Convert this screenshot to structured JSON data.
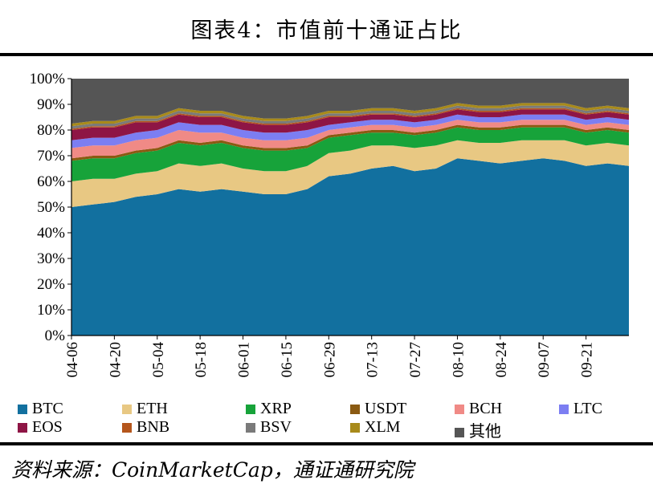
{
  "title": "图表4：市值前十通证占比",
  "source": "资料来源：CoinMarketCap，通证通研究院",
  "chart_data": {
    "type": "area",
    "stacked": true,
    "normalized_percent": true,
    "ylim": [
      0,
      100
    ],
    "y_ticks": [
      "0%",
      "10%",
      "20%",
      "30%",
      "40%",
      "50%",
      "60%",
      "70%",
      "80%",
      "90%",
      "100%"
    ],
    "x_tick_labels": [
      "04-06",
      "04-20",
      "05-04",
      "05-18",
      "06-01",
      "06-15",
      "06-29",
      "07-13",
      "07-27",
      "08-10",
      "08-24",
      "09-07",
      "09-21"
    ],
    "x": [
      "04-06",
      "04-13",
      "04-20",
      "04-27",
      "05-04",
      "05-11",
      "05-18",
      "05-25",
      "06-01",
      "06-08",
      "06-15",
      "06-22",
      "06-29",
      "07-06",
      "07-13",
      "07-20",
      "07-27",
      "08-03",
      "08-10",
      "08-17",
      "08-24",
      "08-31",
      "09-07",
      "09-14",
      "09-21",
      "09-28",
      "10-02"
    ],
    "series": [
      {
        "name": "BTC",
        "color": "#12709f",
        "values": [
          50,
          51,
          52,
          54,
          55,
          57,
          56,
          57,
          56,
          55,
          55,
          57,
          62,
          63,
          65,
          66,
          64,
          65,
          69,
          68,
          67,
          68,
          69,
          68,
          66,
          67,
          66
        ]
      },
      {
        "name": "ETH",
        "color": "#e8c883",
        "values": [
          10,
          10,
          9,
          9,
          9,
          10,
          10,
          10,
          9,
          9,
          9,
          9,
          9,
          9,
          9,
          8,
          9,
          9,
          7,
          7,
          8,
          8,
          7,
          8,
          8,
          8,
          8
        ]
      },
      {
        "name": "XRP",
        "color": "#17a33a",
        "values": [
          8,
          8,
          8,
          8,
          8,
          8,
          8,
          8,
          8,
          8,
          8,
          7,
          6,
          6,
          5,
          5,
          5,
          5,
          5,
          5,
          5,
          5,
          5,
          5,
          5,
          5,
          5
        ]
      },
      {
        "name": "USDT",
        "color": "#8a5a12",
        "values": [
          1,
          1,
          1,
          1,
          1,
          1,
          1,
          1,
          1,
          1,
          1,
          1,
          1,
          1,
          1,
          1,
          1,
          1,
          1,
          1,
          1,
          1,
          1,
          1,
          1,
          1,
          1
        ]
      },
      {
        "name": "BCH",
        "color": "#f08a86",
        "values": [
          4,
          4,
          4,
          4,
          4,
          4,
          4,
          3,
          3,
          3,
          3,
          3,
          2,
          2,
          2,
          2,
          2,
          2,
          2,
          2,
          2,
          2,
          2,
          2,
          2,
          2,
          2
        ]
      },
      {
        "name": "LTC",
        "color": "#7c7ef2",
        "values": [
          3,
          3,
          3,
          3,
          3,
          3,
          3,
          3,
          3,
          3,
          3,
          3,
          2,
          2,
          2,
          2,
          2,
          2,
          2,
          2,
          2,
          2,
          2,
          2,
          2,
          2,
          2
        ]
      },
      {
        "name": "EOS",
        "color": "#8e1545",
        "values": [
          4,
          4,
          4,
          4,
          3,
          3,
          3,
          3,
          3,
          3,
          3,
          3,
          3,
          2,
          2,
          2,
          2,
          2,
          2,
          2,
          2,
          2,
          2,
          2,
          2,
          2,
          2
        ]
      },
      {
        "name": "BNB",
        "color": "#b5561c",
        "values": [
          0.5,
          0.5,
          0.5,
          0.5,
          0.5,
          0.5,
          0.5,
          0.5,
          0.5,
          0.5,
          0.5,
          0.5,
          0.5,
          0.5,
          0.5,
          0.5,
          0.5,
          0.5,
          0.5,
          0.5,
          0.5,
          0.5,
          0.5,
          0.5,
          0.5,
          0.5,
          0.5
        ]
      },
      {
        "name": "BSV",
        "color": "#7a7a7a",
        "values": [
          1,
          1,
          1,
          1,
          1,
          1,
          1,
          1,
          1,
          1,
          1,
          1,
          1,
          1,
          1,
          1,
          1,
          1,
          1,
          1,
          1,
          1,
          1,
          1,
          1,
          1,
          1
        ]
      },
      {
        "name": "XLM",
        "color": "#a88a1a",
        "values": [
          1,
          1,
          1,
          1,
          1,
          1,
          1,
          1,
          1,
          1,
          1,
          1,
          1,
          1,
          1,
          1,
          1,
          1,
          1,
          1,
          1,
          1,
          1,
          1,
          1,
          1,
          1
        ]
      },
      {
        "name": "其他",
        "color": "#555555",
        "values": [
          17.5,
          16.5,
          16.5,
          14.5,
          14.5,
          11.5,
          12.5,
          12.5,
          14.5,
          15.5,
          15.5,
          14.5,
          12.5,
          13.5,
          12.5,
          12.5,
          14.5,
          13.5,
          12.5,
          13.5,
          13.5,
          12.5,
          12.5,
          12.5,
          14.5,
          13.5,
          14.5
        ]
      }
    ],
    "legend_position": "bottom"
  }
}
